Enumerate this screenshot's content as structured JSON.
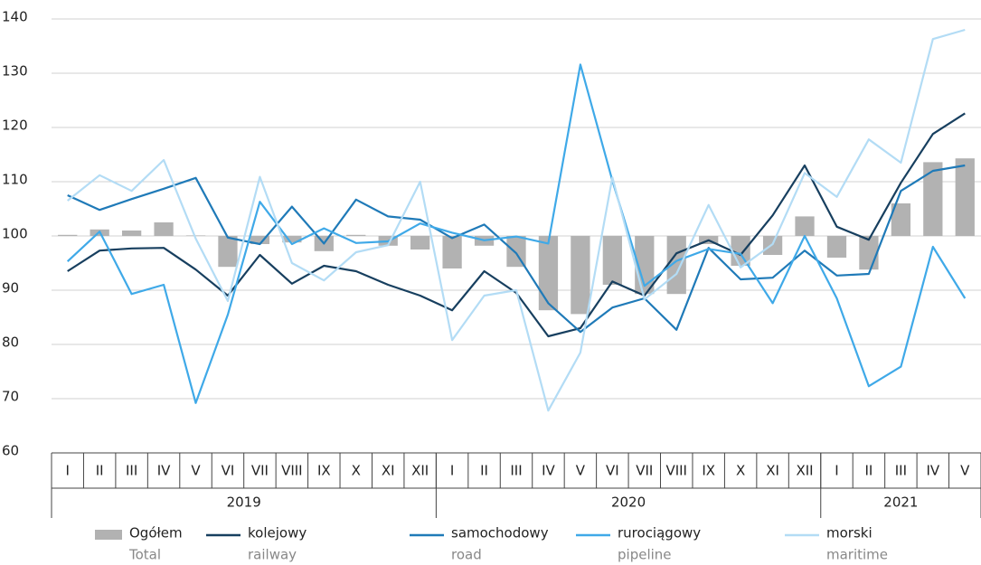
{
  "chart_data": {
    "type": "bar_line",
    "categories": [
      "I",
      "II",
      "III",
      "IV",
      "V",
      "VI",
      "VII",
      "VIII",
      "IX",
      "X",
      "XI",
      "XII",
      "I",
      "II",
      "III",
      "IV",
      "V",
      "VI",
      "VII",
      "VIII",
      "IX",
      "X",
      "XI",
      "XII",
      "I",
      "II",
      "III",
      "IV",
      "V"
    ],
    "year_groups": [
      {
        "label": "2019",
        "span": 12
      },
      {
        "label": "2020",
        "span": 12
      },
      {
        "label": "2021",
        "span": 5
      }
    ],
    "ylim": [
      60,
      140
    ],
    "yticks": [
      60,
      70,
      80,
      90,
      100,
      110,
      120,
      130,
      140
    ],
    "grid": true,
    "bar_baseline": 100,
    "series": [
      {
        "name": "Ogółem",
        "name_en": "Total",
        "type": "bar",
        "color": "#b2b2b2",
        "values": [
          100.2,
          101.2,
          101,
          102.5,
          100.1,
          94.3,
          98.5,
          98.8,
          97.2,
          100.2,
          98.2,
          97.5,
          94,
          98.2,
          94.3,
          86.3,
          85.6,
          91,
          89.3,
          89.3,
          98.5,
          94.5,
          96.5,
          103.6,
          96,
          93.8,
          106,
          113.6,
          114.3
        ]
      },
      {
        "name": "kolejowy",
        "name_en": "railway",
        "type": "line",
        "color": "#173f5f",
        "values": [
          93.5,
          97.3,
          97.7,
          97.8,
          93.8,
          89,
          96.5,
          91.2,
          94.5,
          93.5,
          91,
          89,
          86.3,
          93.5,
          89.5,
          81.5,
          83,
          91.6,
          89,
          96.8,
          99.2,
          96.5,
          103.8,
          113,
          101.7,
          99.3,
          109.8,
          118.8,
          122.6
        ]
      },
      {
        "name": "samochodowy",
        "name_en": "road",
        "type": "line",
        "color": "#1f7ab8",
        "values": [
          107.5,
          104.8,
          106.8,
          108.7,
          110.7,
          99.7,
          98.5,
          105.4,
          98.6,
          106.7,
          103.6,
          103,
          99.6,
          102.1,
          96.8,
          87.6,
          82.3,
          86.8,
          88.5,
          82.7,
          97.8,
          92,
          92.3,
          97.3,
          92.7,
          93,
          108.3,
          112,
          113
        ]
      },
      {
        "name": "rurociągowy",
        "name_en": "pipeline",
        "type": "line",
        "color": "#3fa9e8",
        "values": [
          95.3,
          100.8,
          89.3,
          91,
          69.2,
          85.5,
          106.3,
          98.5,
          101.4,
          98.7,
          99,
          102.3,
          100.6,
          99.2,
          99.9,
          98.6,
          131.6,
          110.2,
          90.8,
          95.4,
          97.6,
          96.7,
          87.6,
          100,
          88.5,
          72.3,
          75.9,
          98,
          88.5
        ]
      },
      {
        "name": "morski",
        "name_en": "maritime",
        "type": "line",
        "color": "#b3dcf5",
        "values": [
          106.5,
          111.2,
          108.3,
          114,
          99.5,
          88,
          110.9,
          95,
          91.8,
          97,
          98.3,
          110,
          80.8,
          89,
          90,
          67.8,
          78.5,
          110.8,
          88.3,
          93,
          105.7,
          94.2,
          98.5,
          111.6,
          107.2,
          117.8,
          113.5,
          136.3,
          138
        ]
      }
    ]
  }
}
